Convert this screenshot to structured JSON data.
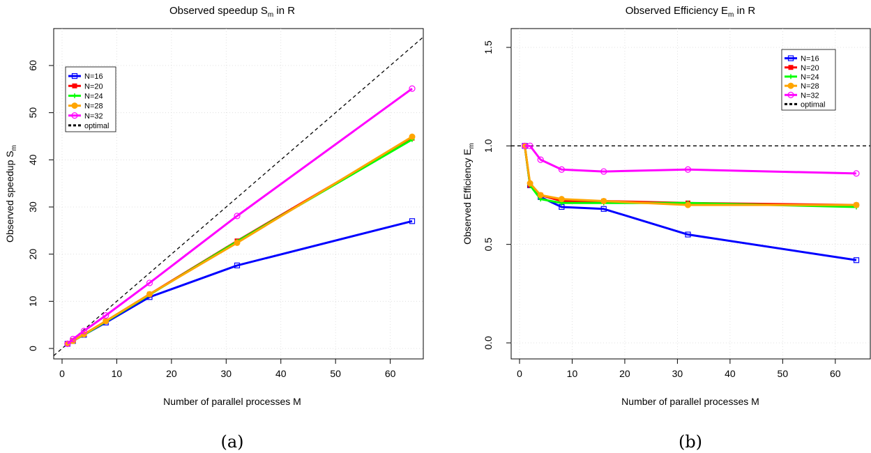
{
  "chart_data": [
    {
      "type": "line",
      "panel": "(a)",
      "title_main": "Observed speedup S",
      "title_sub": "m",
      "title_tail": " in R",
      "xlabel": "Number of parallel processes M",
      "ylabel_main": "Observed speedup S",
      "ylabel_sub": "m",
      "xlim": [
        0,
        64
      ],
      "ylim": [
        0,
        60
      ],
      "xticks": [
        0,
        10,
        20,
        30,
        40,
        50,
        60
      ],
      "yticks": [
        0,
        10,
        20,
        30,
        40,
        50,
        60
      ],
      "grid": true,
      "legend_position": "top-left",
      "x": [
        1,
        2,
        4,
        8,
        16,
        32,
        64
      ],
      "series": [
        {
          "name": "N=16",
          "color": "#0000ff",
          "values": [
            1,
            1.6,
            2.9,
            5.5,
            10.9,
            17.6,
            27.0
          ]
        },
        {
          "name": "N=20",
          "color": "#ff0000",
          "values": [
            1,
            1.6,
            3.0,
            5.8,
            11.5,
            22.8,
            44.6
          ]
        },
        {
          "name": "N=24",
          "color": "#00ff00",
          "values": [
            1,
            1.6,
            2.9,
            5.7,
            11.4,
            22.7,
            44.3
          ]
        },
        {
          "name": "N=28",
          "color": "#ffa500",
          "values": [
            1,
            1.6,
            3.0,
            5.8,
            11.5,
            22.4,
            44.9
          ]
        },
        {
          "name": "N=32",
          "color": "#ff00ff",
          "values": [
            1,
            2.0,
            3.7,
            7.0,
            13.9,
            28.1,
            55.1
          ]
        }
      ],
      "reference": {
        "name": "optimal",
        "color": "#000000",
        "style": "dashed",
        "type": "y=x"
      }
    },
    {
      "type": "line",
      "panel": "(b)",
      "title_main": "Observed Efficiency E",
      "title_sub": "m",
      "title_tail": " in R",
      "xlabel": "Number of parallel processes M",
      "ylabel_main": "Observed Efficiency E",
      "ylabel_sub": "m",
      "xlim": [
        0,
        64
      ],
      "ylim": [
        0,
        1.5
      ],
      "xticks": [
        0,
        10,
        20,
        30,
        40,
        50,
        60
      ],
      "yticks": [
        0.0,
        0.5,
        1.0,
        1.5
      ],
      "ytick_labels": [
        "0.0",
        "0.5",
        "1.0",
        "1.5"
      ],
      "grid": true,
      "legend_position": "top-right",
      "x": [
        1,
        2,
        4,
        8,
        16,
        32,
        64
      ],
      "series": [
        {
          "name": "N=16",
          "color": "#0000ff",
          "values": [
            1.0,
            0.8,
            0.74,
            0.69,
            0.68,
            0.55,
            0.42
          ]
        },
        {
          "name": "N=20",
          "color": "#ff0000",
          "values": [
            1.0,
            0.8,
            0.75,
            0.72,
            0.72,
            0.71,
            0.7
          ]
        },
        {
          "name": "N=24",
          "color": "#00ff00",
          "values": [
            1.0,
            0.8,
            0.73,
            0.71,
            0.71,
            0.71,
            0.69
          ]
        },
        {
          "name": "N=28",
          "color": "#ffa500",
          "values": [
            1.0,
            0.81,
            0.75,
            0.73,
            0.72,
            0.7,
            0.7
          ]
        },
        {
          "name": "N=32",
          "color": "#ff00ff",
          "values": [
            1.0,
            1.0,
            0.93,
            0.88,
            0.87,
            0.88,
            0.86
          ]
        }
      ],
      "reference": {
        "name": "optimal",
        "color": "#000000",
        "style": "dashed",
        "type": "y=1"
      }
    }
  ]
}
